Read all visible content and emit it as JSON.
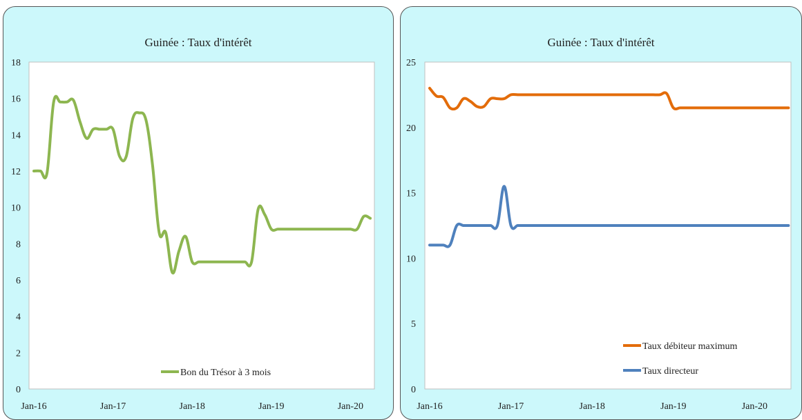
{
  "chart_data": [
    {
      "type": "line",
      "title": "Guinée : Taux d'intérêt",
      "xlabel": "",
      "ylabel": "",
      "ylim": [
        0,
        18
      ],
      "yticks": [
        "0",
        "2",
        "4",
        "6",
        "8",
        "10",
        "12",
        "14",
        "16",
        "18"
      ],
      "xticks": [
        "Jan-16",
        "Jan-17",
        "Jan-18",
        "Jan-19",
        "Jan-20"
      ],
      "grid": false,
      "legend_position": "bottom-center",
      "series": [
        {
          "name": "Bon du Trésor à 3 mois",
          "color": "#8db650",
          "x": [
            0,
            1,
            2,
            3,
            4,
            5,
            6,
            7,
            8,
            9,
            10,
            11,
            12,
            13,
            14,
            15,
            16,
            17,
            18,
            19,
            20,
            21,
            22,
            23,
            24,
            25,
            26,
            27,
            28,
            29,
            30,
            31,
            32,
            33,
            34,
            35,
            36,
            37,
            38,
            39,
            40,
            41,
            42,
            43,
            44,
            45,
            46,
            47,
            48,
            49,
            50,
            51
          ],
          "values": [
            12.0,
            12.0,
            11.9,
            15.8,
            15.8,
            15.8,
            15.9,
            14.7,
            13.8,
            14.3,
            14.3,
            14.3,
            14.3,
            12.8,
            12.8,
            14.9,
            15.2,
            14.8,
            12.3,
            8.6,
            8.6,
            6.4,
            7.6,
            8.4,
            7.0,
            7.0,
            7.0,
            7.0,
            7.0,
            7.0,
            7.0,
            7.0,
            7.0,
            7.0,
            9.9,
            9.6,
            8.8,
            8.8,
            8.8,
            8.8,
            8.8,
            8.8,
            8.8,
            8.8,
            8.8,
            8.8,
            8.8,
            8.8,
            8.8,
            8.8,
            9.5,
            9.4
          ]
        }
      ]
    },
    {
      "type": "line",
      "title": "Guinée : Taux d'intérêt",
      "xlabel": "",
      "ylabel": "",
      "ylim": [
        0,
        25
      ],
      "yticks": [
        "0",
        "5",
        "10",
        "15",
        "20",
        "25"
      ],
      "xticks": [
        "Jan-16",
        "Jan-17",
        "Jan-18",
        "Jan-19",
        "Jan-20"
      ],
      "grid": false,
      "legend_position": "bottom-right",
      "series": [
        {
          "name": "Taux débiteur maximum",
          "color": "#e36c0a",
          "x": [
            0,
            1,
            2,
            3,
            4,
            5,
            6,
            7,
            8,
            9,
            10,
            11,
            12,
            13,
            14,
            15,
            16,
            17,
            18,
            19,
            20,
            21,
            22,
            23,
            24,
            25,
            26,
            27,
            28,
            29,
            30,
            31,
            32,
            33,
            34,
            35,
            36,
            37,
            38,
            39,
            40,
            41,
            42,
            43,
            44,
            45,
            46,
            47,
            48,
            49,
            50,
            51,
            52,
            53
          ],
          "values": [
            23.0,
            22.4,
            22.3,
            21.5,
            21.5,
            22.2,
            22.0,
            21.6,
            21.6,
            22.2,
            22.2,
            22.2,
            22.5,
            22.5,
            22.5,
            22.5,
            22.5,
            22.5,
            22.5,
            22.5,
            22.5,
            22.5,
            22.5,
            22.5,
            22.5,
            22.5,
            22.5,
            22.5,
            22.5,
            22.5,
            22.5,
            22.5,
            22.5,
            22.5,
            22.5,
            22.6,
            21.5,
            21.5,
            21.5,
            21.5,
            21.5,
            21.5,
            21.5,
            21.5,
            21.5,
            21.5,
            21.5,
            21.5,
            21.5,
            21.5,
            21.5,
            21.5,
            21.5,
            21.5
          ]
        },
        {
          "name": "Taux   directeur",
          "color": "#4f81bd",
          "x": [
            0,
            1,
            2,
            3,
            4,
            5,
            6,
            7,
            8,
            9,
            10,
            11,
            12,
            13,
            14,
            15,
            16,
            17,
            18,
            19,
            20,
            21,
            22,
            23,
            24,
            25,
            26,
            27,
            28,
            29,
            30,
            31,
            32,
            33,
            34,
            35,
            36,
            37,
            38,
            39,
            40,
            41,
            42,
            43,
            44,
            45,
            46,
            47,
            48,
            49,
            50,
            51,
            52,
            53
          ],
          "values": [
            11.0,
            11.0,
            11.0,
            11.0,
            12.5,
            12.5,
            12.5,
            12.5,
            12.5,
            12.5,
            12.5,
            15.5,
            12.5,
            12.5,
            12.5,
            12.5,
            12.5,
            12.5,
            12.5,
            12.5,
            12.5,
            12.5,
            12.5,
            12.5,
            12.5,
            12.5,
            12.5,
            12.5,
            12.5,
            12.5,
            12.5,
            12.5,
            12.5,
            12.5,
            12.5,
            12.5,
            12.5,
            12.5,
            12.5,
            12.5,
            12.5,
            12.5,
            12.5,
            12.5,
            12.5,
            12.5,
            12.5,
            12.5,
            12.5,
            12.5,
            12.5,
            12.5,
            12.5,
            12.5
          ]
        }
      ]
    }
  ]
}
